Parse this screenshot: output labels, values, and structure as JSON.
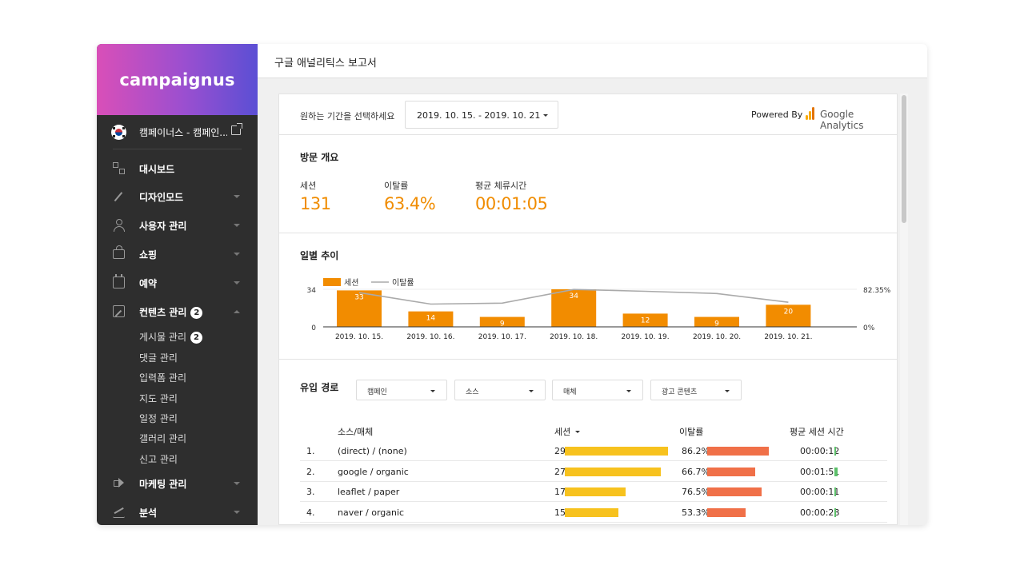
{
  "sidebar": {
    "brand": "campaignus",
    "site_name": "캠페이너스 - 캠페인...",
    "items": [
      {
        "label": "대시보드",
        "icon": "dashboard-icon"
      },
      {
        "label": "디자인모드",
        "icon": "magic-wand-icon"
      },
      {
        "label": "사용자 관리",
        "icon": "user-icon"
      },
      {
        "label": "쇼핑",
        "icon": "shopping-bag-icon"
      },
      {
        "label": "예약",
        "icon": "calendar-icon"
      },
      {
        "label": "컨텐츠 관리",
        "icon": "edit-icon",
        "badge": "2"
      },
      {
        "label": "마케팅 관리",
        "icon": "megaphone-icon"
      },
      {
        "label": "분석",
        "icon": "chart-icon"
      }
    ],
    "subitems": [
      {
        "label": "게시물 관리",
        "badge": "2"
      },
      {
        "label": "댓글 관리"
      },
      {
        "label": "입력폼 관리"
      },
      {
        "label": "지도 관리"
      },
      {
        "label": "일정 관리"
      },
      {
        "label": "갤러리 관리"
      },
      {
        "label": "신고 관리"
      }
    ]
  },
  "header": {
    "title": "구글 애널리틱스 보고서"
  },
  "filter": {
    "period_label": "원하는 기간을 선택하세요",
    "period_value": "2019. 10. 15. - 2019. 10. 21",
    "powered_by": "Powered By",
    "ga_name": "Google Analytics"
  },
  "overview": {
    "title": "방문 개요",
    "metrics": [
      {
        "label": "세션",
        "value": "131"
      },
      {
        "label": "이탈률",
        "value": "63.4%"
      },
      {
        "label": "평균 체류시간",
        "value": "00:01:05"
      }
    ]
  },
  "daily": {
    "title": "일별 추이",
    "legend_sessions": "세션",
    "legend_bounce": "이탈률",
    "y_left_labels": [
      "34",
      "0"
    ],
    "y_right_labels": [
      "82.35%",
      "0%"
    ]
  },
  "chart_data": {
    "type": "bar",
    "categories": [
      "2019. 10. 15.",
      "2019. 10. 16.",
      "2019. 10. 17.",
      "2019. 10. 18.",
      "2019. 10. 19.",
      "2019. 10. 20.",
      "2019. 10. 21."
    ],
    "series": [
      {
        "name": "세션",
        "type": "bar",
        "values": [
          33,
          14,
          9,
          34,
          12,
          9,
          20
        ]
      },
      {
        "name": "이탈률",
        "type": "line",
        "values": [
          75,
          50,
          52,
          82,
          78,
          73,
          54
        ]
      }
    ],
    "ylim": [
      0,
      34
    ],
    "y2lim": [
      0,
      82.35
    ],
    "colors": {
      "bar": "#f28c00",
      "line": "#aaaaaa"
    }
  },
  "source": {
    "title": "유입 경로",
    "filters": [
      "캠페인",
      "소스",
      "매체",
      "광고 콘텐츠"
    ],
    "columns": [
      "소스/매체",
      "세션",
      "이탈률",
      "평균 세션 시간"
    ],
    "rows": [
      {
        "idx": "1.",
        "name": "(direct) / (none)",
        "sessions": 29,
        "bounce": "86.2%",
        "bounce_pct": 86.2,
        "time": "00:00:12",
        "time_sec": 12
      },
      {
        "idx": "2.",
        "name": "google / organic",
        "sessions": 27,
        "bounce": "66.7%",
        "bounce_pct": 66.7,
        "time": "00:01:51",
        "time_sec": 111
      },
      {
        "idx": "3.",
        "name": "leaflet / paper",
        "sessions": 17,
        "bounce": "76.5%",
        "bounce_pct": 76.5,
        "time": "00:00:11",
        "time_sec": 11
      },
      {
        "idx": "4.",
        "name": "naver / organic",
        "sessions": 15,
        "bounce": "53.3%",
        "bounce_pct": 53.3,
        "time": "00:00:28",
        "time_sec": 28
      }
    ]
  },
  "colors": {
    "accent": "#f08c00",
    "bar_sessions": "#f7c21e",
    "bar_bounce": "#f07048",
    "bar_time": "#5cbf6a"
  }
}
